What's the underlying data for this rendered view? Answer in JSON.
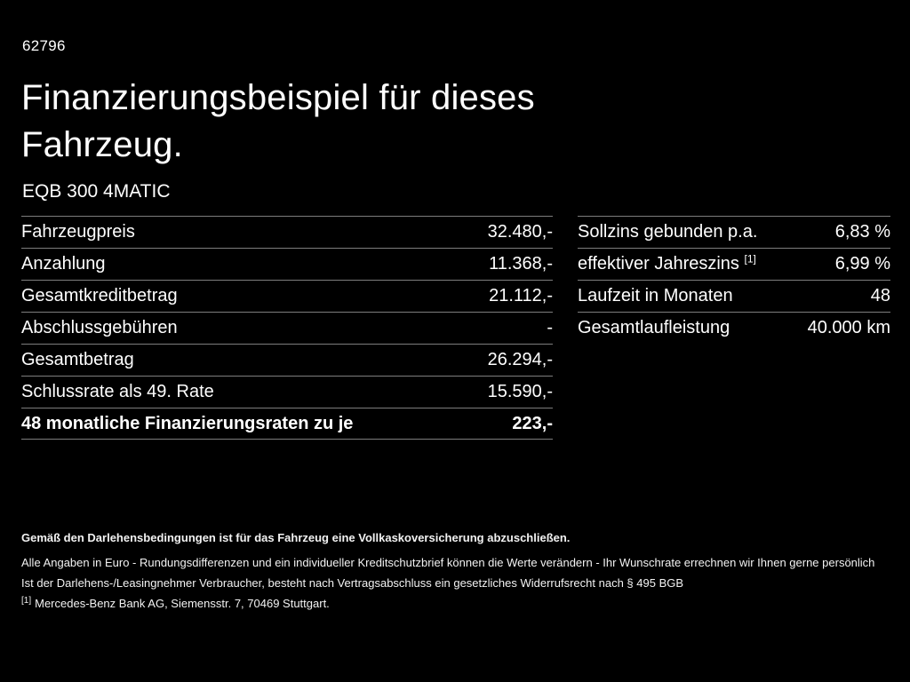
{
  "page": {
    "ref_number": "62796",
    "title_line1": "Finanzierungsbeispiel für dieses",
    "title_line2": "Fahrzeug.",
    "vehicle_model": "EQB 300 4MATIC"
  },
  "finance_table": {
    "rows": [
      {
        "label": "Fahrzeugpreis",
        "value": "32.480,-"
      },
      {
        "label": "Anzahlung",
        "value": "11.368,-"
      },
      {
        "label": "Gesamtkreditbetrag",
        "value": "21.112,-"
      },
      {
        "label": "Abschlussgebühren",
        "value": "-"
      },
      {
        "label": "Gesamtbetrag",
        "value": "26.294,-"
      },
      {
        "label": "Schlussrate als 49. Rate",
        "value": "15.590,-"
      },
      {
        "label": "48 monatliche Finanzierungsraten zu je",
        "value": "223,-"
      }
    ]
  },
  "conditions_table": {
    "rows": [
      {
        "label": "Sollzins gebunden p.a.",
        "value": "6,83 %"
      },
      {
        "label": "effektiver Jahreszins",
        "sup": "[1]",
        "value": "6,99 %"
      },
      {
        "label": "Laufzeit in Monaten",
        "value": "48"
      },
      {
        "label": "Gesamtlaufleistung",
        "value": "40.000 km"
      }
    ]
  },
  "footer": {
    "insurance_note": "Gemäß den Darlehensbedingungen ist für das Fahrzeug eine Vollkaskoversicherung abzuschließen.",
    "disclaimer_line1": "Alle Angaben in Euro - Rundungsdifferenzen und ein individueller Kreditschutzbrief können die Werte verändern - Ihr Wunschrate errechnen wir Ihnen gerne persönlich",
    "disclaimer_line2": "Ist der Darlehens-/Leasingnehmer Verbraucher, besteht nach Vertragsabschluss ein gesetzliches Widerrufsrecht nach § 495 BGB",
    "footnote_marker": "[1]",
    "footnote_text": "Mercedes-Benz Bank AG, Siemensstr. 7, 70469 Stuttgart."
  }
}
